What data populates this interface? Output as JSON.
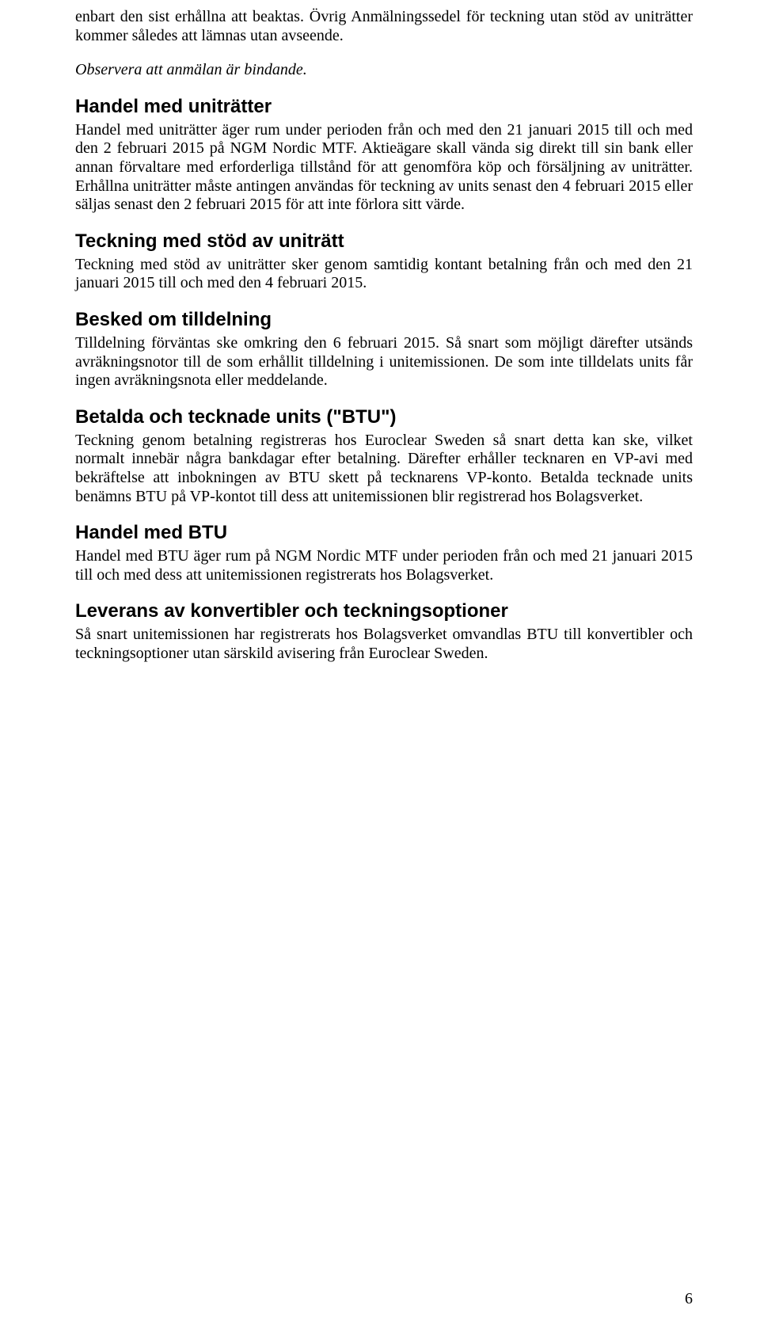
{
  "intro": {
    "p1": "enbart den sist erhållna att beaktas. Övrig Anmälningssedel för teckning utan stöd av uniträtter kommer således att lämnas utan avseende.",
    "p2": "Observera att anmälan är bindande."
  },
  "sections": {
    "s1": {
      "heading": "Handel med uniträtter",
      "body": "Handel med uniträtter äger rum under perioden från och med den 21 januari 2015 till och med den 2 februari 2015 på NGM Nordic MTF. Aktieägare skall vända sig direkt till sin bank eller annan förvaltare med erforderliga tillstånd för att genomföra köp och försäljning av uniträtter. Erhållna uniträtter måste antingen användas för teckning av units senast den 4 februari 2015 eller säljas senast den 2 februari 2015 för att inte förlora sitt värde."
    },
    "s2": {
      "heading": "Teckning med stöd av uniträtt",
      "body": "Teckning med stöd av uniträtter sker genom samtidig kontant betalning från och med den 21 januari 2015 till och med den 4 februari 2015."
    },
    "s3": {
      "heading": "Besked om tilldelning",
      "body": "Tilldelning förväntas ske omkring den 6 februari 2015. Så snart som möjligt därefter utsänds avräkningsnotor till de som erhållit tilldelning i unitemissionen. De som inte tilldelats units får ingen avräkningsnota eller meddelande."
    },
    "s4": {
      "heading": "Betalda och tecknade units (\"BTU\")",
      "body": "Teckning genom betalning registreras hos Euroclear Sweden så snart detta kan ske, vilket normalt innebär några bankdagar efter betalning. Därefter erhåller tecknaren en VP-avi med bekräftelse att inbokningen av BTU skett på tecknarens VP-konto. Betalda tecknade units benämns BTU på VP-kontot till dess att unitemissionen blir registrerad hos Bolagsverket."
    },
    "s5": {
      "heading": "Handel med BTU",
      "body": "Handel med BTU äger rum på NGM Nordic MTF under perioden från och med 21 januari 2015 till och med dess att unitemissionen registrerats hos Bolagsverket."
    },
    "s6": {
      "heading": "Leverans av konvertibler och teckningsoptioner",
      "body": "Så snart unitemissionen har registrerats hos Bolagsverket omvandlas BTU till konvertibler och teckningsoptioner utan särskild avisering från Euroclear Sweden."
    }
  },
  "pageNumber": "6"
}
